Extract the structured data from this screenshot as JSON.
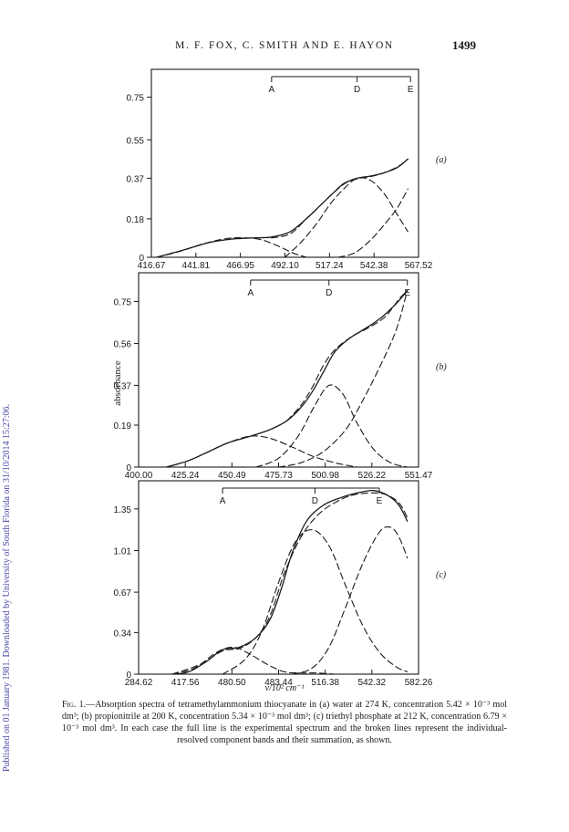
{
  "header": {
    "authors": "M. F. FOX, C. SMITH AND E. HAYON",
    "page_number": "1499"
  },
  "side_note": "Published on 01 January 1981. Downloaded by University of South Florida on 31/10/2014 15:27:06.",
  "figure": {
    "y_axis_label": "absorbance",
    "x_axis_label": "ν/10² cm⁻¹"
  },
  "caption": {
    "lead": "Fig. 1.",
    "text": "—Absorption spectra of tetramethylammonium thiocyanate in (a) water at 274 K, concentration 5.42 × 10⁻³ mol dm³; (b) propionitrile at 200 K, concentration 5.34 × 10⁻³ mol dm³; (c) triethyl phosphate at 212 K, concentration 6.79 × 10⁻³ mol dm³. In each case the full line is the experimental spectrum and the broken lines represent the individual-resolved component bands and their summation, as shown."
  },
  "chart_data": [
    {
      "type": "line",
      "panel_label": "(a)",
      "x_ticks": [
        "416.67",
        "441.81",
        "466.95",
        "492.10",
        "517.24",
        "542.38",
        "567.52"
      ],
      "y_ticks": [
        "0",
        "0.18",
        "0.37",
        "0.55",
        "0.75"
      ],
      "y_tick_values": [
        0,
        0.18,
        0.37,
        0.55,
        0.75
      ],
      "ylim": [
        0,
        0.88
      ],
      "markers": [
        {
          "label": "A",
          "x": 0.45
        },
        {
          "label": "D",
          "x": 0.77
        },
        {
          "label": "E",
          "x": 0.97
        }
      ],
      "series": [
        {
          "style": "solid",
          "x": [
            0.02,
            0.08,
            0.15,
            0.22,
            0.3,
            0.37,
            0.45,
            0.52,
            0.58,
            0.63,
            0.68,
            0.72,
            0.77,
            0.82,
            0.87,
            0.92,
            0.96
          ],
          "y": [
            0,
            0.02,
            0.045,
            0.07,
            0.085,
            0.09,
            0.095,
            0.12,
            0.18,
            0.24,
            0.3,
            0.345,
            0.37,
            0.38,
            0.395,
            0.42,
            0.46
          ]
        },
        {
          "style": "dashed",
          "x": [
            0.02,
            0.1,
            0.2,
            0.3,
            0.4,
            0.47,
            0.53,
            0.58
          ],
          "y": [
            0,
            0.025,
            0.065,
            0.09,
            0.085,
            0.055,
            0.02,
            0
          ]
        },
        {
          "style": "dashed",
          "x": [
            0.5,
            0.56,
            0.62,
            0.67,
            0.72,
            0.77,
            0.82,
            0.87,
            0.92,
            0.96
          ],
          "y": [
            0,
            0.07,
            0.16,
            0.25,
            0.32,
            0.37,
            0.36,
            0.3,
            0.2,
            0.12
          ]
        },
        {
          "style": "dashed",
          "x": [
            0.7,
            0.76,
            0.82,
            0.87,
            0.92,
            0.96
          ],
          "y": [
            0,
            0.02,
            0.08,
            0.15,
            0.23,
            0.32
          ]
        },
        {
          "style": "dashed",
          "x": [
            0.45,
            0.52,
            0.58,
            0.63,
            0.68,
            0.73,
            0.78,
            0.83,
            0.88,
            0.93,
            0.96
          ],
          "y": [
            0.09,
            0.11,
            0.18,
            0.24,
            0.3,
            0.35,
            0.37,
            0.38,
            0.4,
            0.43,
            0.46
          ]
        }
      ]
    },
    {
      "type": "line",
      "panel_label": "(b)",
      "x_ticks": [
        "400.00",
        "425.24",
        "450.49",
        "475.73",
        "500.98",
        "526.22",
        "551.47"
      ],
      "y_ticks": [
        "0",
        "0.19",
        "0.37",
        "0.56",
        "0.75"
      ],
      "y_tick_values": [
        0,
        0.19,
        0.37,
        0.56,
        0.75
      ],
      "ylim": [
        0,
        0.88
      ],
      "markers": [
        {
          "label": "A",
          "x": 0.4
        },
        {
          "label": "D",
          "x": 0.68
        },
        {
          "label": "E",
          "x": 0.96
        }
      ],
      "series": [
        {
          "style": "solid",
          "x": [
            0.1,
            0.18,
            0.25,
            0.32,
            0.4,
            0.47,
            0.53,
            0.58,
            0.62,
            0.66,
            0.7,
            0.75,
            0.8,
            0.86,
            0.92,
            0.96
          ],
          "y": [
            0,
            0.03,
            0.07,
            0.11,
            0.14,
            0.17,
            0.21,
            0.27,
            0.34,
            0.43,
            0.52,
            0.58,
            0.62,
            0.67,
            0.74,
            0.8
          ]
        },
        {
          "style": "dashed",
          "x": [
            0.1,
            0.18,
            0.25,
            0.32,
            0.4,
            0.47,
            0.55,
            0.62,
            0.7,
            0.78
          ],
          "y": [
            0,
            0.03,
            0.07,
            0.11,
            0.14,
            0.13,
            0.09,
            0.05,
            0.02,
            0
          ]
        },
        {
          "style": "dashed",
          "x": [
            0.42,
            0.5,
            0.57,
            0.63,
            0.68,
            0.73,
            0.78,
            0.84,
            0.9,
            0.96
          ],
          "y": [
            0,
            0.04,
            0.14,
            0.28,
            0.37,
            0.33,
            0.2,
            0.08,
            0.02,
            0
          ]
        },
        {
          "style": "dashed",
          "x": [
            0.5,
            0.58,
            0.66,
            0.74,
            0.8,
            0.86,
            0.92,
            0.96
          ],
          "y": [
            0,
            0.02,
            0.07,
            0.17,
            0.3,
            0.45,
            0.62,
            0.8
          ]
        },
        {
          "style": "dashed",
          "x": [
            0.53,
            0.58,
            0.62,
            0.66,
            0.7,
            0.76,
            0.82,
            0.88,
            0.93,
            0.96
          ],
          "y": [
            0.21,
            0.28,
            0.36,
            0.46,
            0.53,
            0.59,
            0.63,
            0.68,
            0.76,
            0.8
          ]
        }
      ]
    },
    {
      "type": "line",
      "panel_label": "(c)",
      "x_ticks": [
        "284.62",
        "417.56",
        "480.50",
        "483.44",
        "516.38",
        "542.32",
        "582.26"
      ],
      "y_ticks": [
        "0",
        "0.34",
        "0.67",
        "1.01",
        "1.35"
      ],
      "y_tick_values": [
        0,
        0.34,
        0.67,
        1.01,
        1.35
      ],
      "ylim": [
        0,
        1.58
      ],
      "markers": [
        {
          "label": "A",
          "x": 0.3
        },
        {
          "label": "D",
          "x": 0.63
        },
        {
          "label": "E",
          "x": 0.86
        }
      ],
      "series": [
        {
          "style": "solid",
          "x": [
            0.12,
            0.18,
            0.24,
            0.3,
            0.36,
            0.42,
            0.47,
            0.51,
            0.55,
            0.6,
            0.66,
            0.72,
            0.78,
            0.84,
            0.89,
            0.93,
            0.96
          ],
          "y": [
            0,
            0.02,
            0.1,
            0.2,
            0.22,
            0.3,
            0.45,
            0.7,
            1.0,
            1.25,
            1.38,
            1.44,
            1.48,
            1.5,
            1.46,
            1.38,
            1.25
          ]
        },
        {
          "style": "dashed",
          "x": [
            0.12,
            0.2,
            0.28,
            0.34,
            0.4,
            0.46,
            0.52,
            0.58,
            0.64,
            0.7
          ],
          "y": [
            0,
            0.05,
            0.18,
            0.22,
            0.16,
            0.08,
            0.02,
            0.01,
            0.01,
            0
          ]
        },
        {
          "style": "dashed",
          "x": [
            0.3,
            0.38,
            0.44,
            0.5,
            0.56,
            0.62,
            0.68,
            0.74,
            0.8,
            0.86,
            0.92,
            0.96
          ],
          "y": [
            0,
            0.12,
            0.35,
            0.75,
            1.08,
            1.18,
            1.05,
            0.72,
            0.4,
            0.18,
            0.06,
            0.02
          ]
        },
        {
          "style": "dashed",
          "x": [
            0.55,
            0.62,
            0.68,
            0.74,
            0.8,
            0.86,
            0.9,
            0.93,
            0.96
          ],
          "y": [
            0,
            0.05,
            0.22,
            0.55,
            0.9,
            1.16,
            1.2,
            1.12,
            0.95
          ]
        },
        {
          "style": "dashed",
          "x": [
            0.12,
            0.22,
            0.3,
            0.36,
            0.42,
            0.47,
            0.52,
            0.58,
            0.64,
            0.7,
            0.76,
            0.82,
            0.88,
            0.93,
            0.96
          ],
          "y": [
            0,
            0.08,
            0.19,
            0.21,
            0.3,
            0.48,
            0.82,
            1.12,
            1.3,
            1.4,
            1.46,
            1.48,
            1.47,
            1.4,
            1.28
          ]
        }
      ]
    }
  ]
}
